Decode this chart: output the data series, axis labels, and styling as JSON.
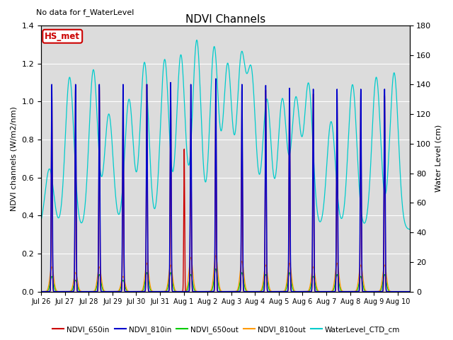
{
  "title": "NDVI Channels",
  "subtitle": "No data for f_WaterLevel",
  "ylabel_left": "NDVI channels (W/m2/nm)",
  "ylabel_right": "Water Level (cm)",
  "xlim_days": [
    0,
    15.5
  ],
  "ylim_left": [
    0,
    1.4
  ],
  "ylim_right": [
    0,
    180
  ],
  "yticks_left": [
    0.0,
    0.2,
    0.4,
    0.6,
    0.8,
    1.0,
    1.2,
    1.4
  ],
  "yticks_right": [
    0,
    20,
    40,
    60,
    80,
    100,
    120,
    140,
    160,
    180
  ],
  "xtick_labels": [
    "Jul 26",
    "Jul 27",
    "Jul 28",
    "Jul 29",
    "Jul 30",
    "Jul 31",
    "Aug 1",
    "Aug 2",
    "Aug 3",
    "Aug 4",
    "Aug 5",
    "Aug 6",
    "Aug 7",
    "Aug 8",
    "Aug 9",
    "Aug 10"
  ],
  "annotation_box": "HS_met",
  "legend_entries": [
    "NDVI_650in",
    "NDVI_810in",
    "NDVI_650out",
    "NDVI_810out",
    "WaterLevel_CTD_cm"
  ],
  "colors": {
    "NDVI_650in": "#cc0000",
    "NDVI_810in": "#0000cc",
    "NDVI_650out": "#00cc00",
    "NDVI_810out": "#ff9900",
    "WaterLevel_CTD_cm": "#00cccc"
  },
  "background_color": "#dcdcdc",
  "grid_color": "#ffffff"
}
